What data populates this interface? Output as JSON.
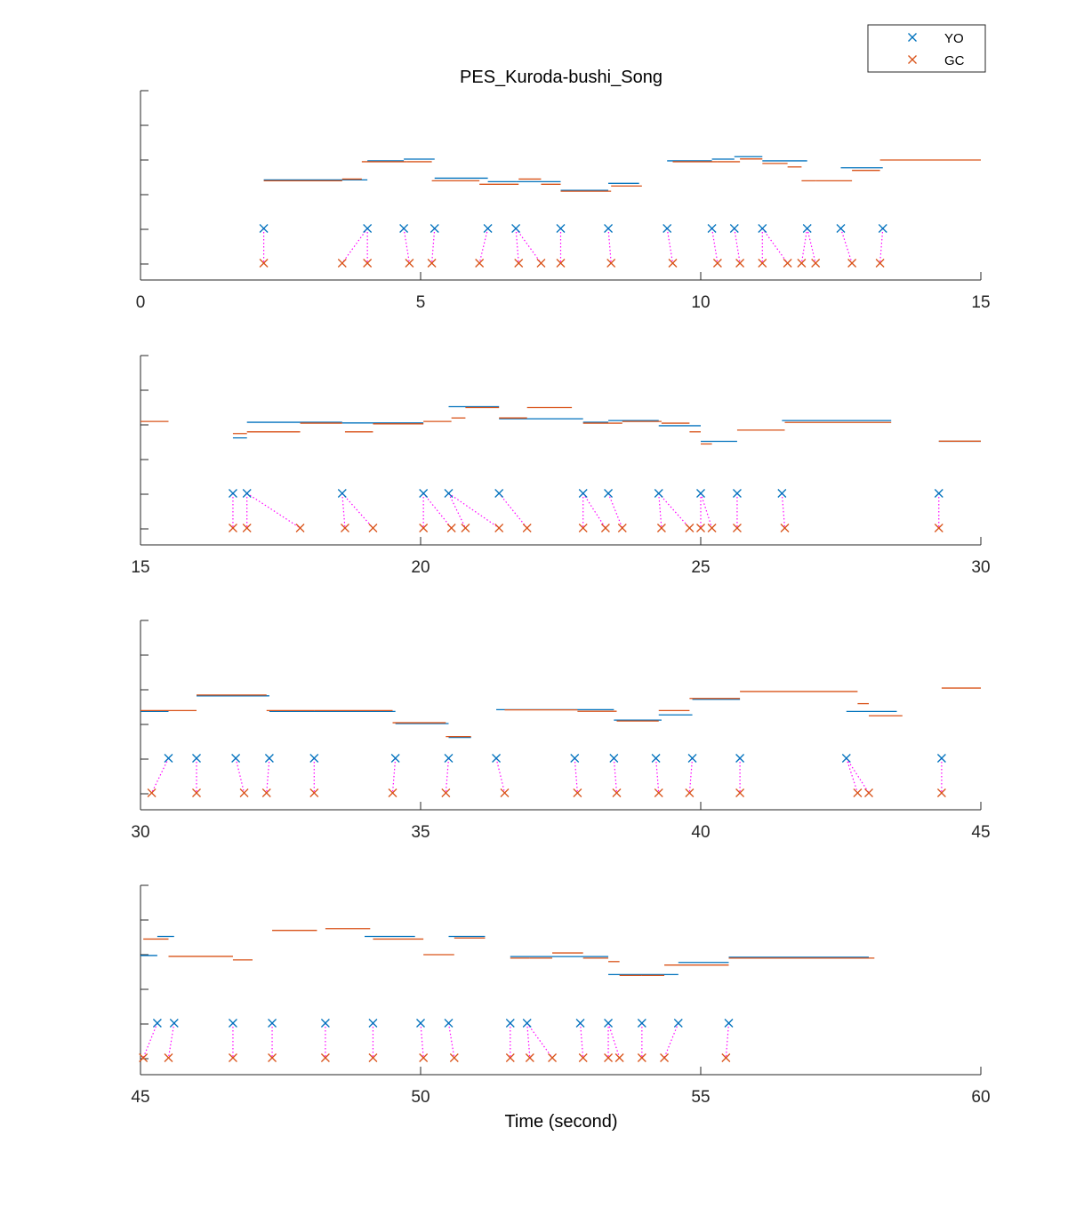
{
  "chart_data": {
    "type": "scatter",
    "title": "PES_Kuroda-bushi_Song",
    "xlabel": "Time (second)",
    "legend": {
      "placement": "top-right",
      "entries": [
        {
          "name": "YO",
          "color": "#0072BD",
          "marker": "x"
        },
        {
          "name": "GC",
          "color": "#D95319",
          "marker": "x"
        }
      ]
    },
    "link_color": "#FF00FF",
    "panels": [
      {
        "xlim": [
          0,
          15
        ],
        "xticks": [
          "0",
          "5",
          "10",
          "15"
        ],
        "yo_onsets": [
          2.2,
          4.05,
          4.7,
          5.25,
          6.2,
          6.7,
          7.5,
          8.35,
          9.4,
          10.2,
          10.6,
          11.1,
          11.9,
          12.5,
          13.25
        ],
        "gc_onsets": [
          2.2,
          3.6,
          4.05,
          4.8,
          5.2,
          6.05,
          6.75,
          7.15,
          7.5,
          8.4,
          9.5,
          10.3,
          10.7,
          11.1,
          11.55,
          11.8,
          12.05,
          12.7,
          13.2
        ],
        "links": [
          [
            2.2,
            2.2
          ],
          [
            4.05,
            4.05
          ],
          [
            4.05,
            3.6
          ],
          [
            4.7,
            4.8
          ],
          [
            5.25,
            5.2
          ],
          [
            6.2,
            6.05
          ],
          [
            6.7,
            6.75
          ],
          [
            6.7,
            7.15
          ],
          [
            7.5,
            7.5
          ],
          [
            8.35,
            8.4
          ],
          [
            9.4,
            9.5
          ],
          [
            10.2,
            10.3
          ],
          [
            10.6,
            10.7
          ],
          [
            11.1,
            11.1
          ],
          [
            11.1,
            11.55
          ],
          [
            11.9,
            11.8
          ],
          [
            11.9,
            12.05
          ],
          [
            12.5,
            12.7
          ],
          [
            13.25,
            13.2
          ]
        ],
        "yo_notes": [
          [
            2.2,
            4.05,
            2.4
          ],
          [
            4.05,
            4.7,
            2.95
          ],
          [
            4.7,
            5.25,
            3.0
          ],
          [
            5.25,
            6.2,
            2.45
          ],
          [
            6.2,
            6.7,
            2.35
          ],
          [
            6.7,
            7.5,
            2.35
          ],
          [
            7.5,
            8.35,
            2.1
          ],
          [
            8.35,
            8.9,
            2.3
          ],
          [
            9.4,
            10.2,
            2.95
          ],
          [
            10.2,
            10.6,
            3.0
          ],
          [
            10.6,
            11.1,
            3.07
          ],
          [
            11.1,
            11.9,
            2.95
          ],
          [
            12.5,
            13.25,
            2.75
          ]
        ],
        "gc_notes": [
          [
            2.2,
            3.6,
            2.4
          ],
          [
            3.6,
            3.95,
            2.45
          ],
          [
            3.95,
            4.75,
            2.95
          ],
          [
            4.75,
            5.2,
            2.95
          ],
          [
            5.2,
            6.05,
            2.4
          ],
          [
            6.05,
            6.75,
            2.3
          ],
          [
            6.75,
            7.15,
            2.45
          ],
          [
            7.15,
            7.5,
            2.3
          ],
          [
            7.5,
            8.4,
            2.1
          ],
          [
            8.4,
            8.95,
            2.25
          ],
          [
            9.5,
            10.3,
            2.95
          ],
          [
            10.3,
            10.7,
            2.95
          ],
          [
            10.7,
            11.1,
            3.03
          ],
          [
            11.1,
            11.55,
            2.9
          ],
          [
            11.55,
            11.8,
            2.8
          ],
          [
            11.8,
            12.05,
            2.4
          ],
          [
            12.05,
            12.7,
            2.4
          ],
          [
            12.7,
            13.2,
            2.7
          ],
          [
            13.2,
            15.0,
            3.0
          ]
        ]
      },
      {
        "xlim": [
          15,
          30
        ],
        "xticks": [
          "15",
          "20",
          "25",
          "30"
        ],
        "yo_onsets": [
          16.65,
          16.9,
          18.6,
          20.05,
          20.5,
          21.4,
          22.9,
          23.35,
          24.25,
          25.0,
          25.65,
          26.45,
          29.25
        ],
        "gc_onsets": [
          16.65,
          16.9,
          17.85,
          18.65,
          19.15,
          20.05,
          20.55,
          20.8,
          21.4,
          21.9,
          22.9,
          23.3,
          23.6,
          24.3,
          24.8,
          25.0,
          25.2,
          25.65,
          26.5,
          29.25
        ],
        "links": [
          [
            16.65,
            16.65
          ],
          [
            16.9,
            16.9
          ],
          [
            16.9,
            17.85
          ],
          [
            18.6,
            18.65
          ],
          [
            18.6,
            19.15
          ],
          [
            20.05,
            20.05
          ],
          [
            20.05,
            20.55
          ],
          [
            20.5,
            20.8
          ],
          [
            20.5,
            21.4
          ],
          [
            21.4,
            21.9
          ],
          [
            22.9,
            22.9
          ],
          [
            22.9,
            23.3
          ],
          [
            23.35,
            23.6
          ],
          [
            24.25,
            24.3
          ],
          [
            24.25,
            24.8
          ],
          [
            25.0,
            25.0
          ],
          [
            25.0,
            25.2
          ],
          [
            25.65,
            25.65
          ],
          [
            26.45,
            26.5
          ],
          [
            29.25,
            29.25
          ]
        ],
        "yo_notes": [
          [
            16.65,
            16.9,
            2.6
          ],
          [
            16.9,
            18.6,
            3.05
          ],
          [
            18.6,
            20.05,
            3.03
          ],
          [
            20.5,
            21.4,
            3.5
          ],
          [
            21.4,
            22.9,
            3.15
          ],
          [
            22.9,
            23.35,
            3.05
          ],
          [
            23.35,
            24.25,
            3.1
          ],
          [
            24.25,
            25.0,
            2.95
          ],
          [
            25.0,
            25.65,
            2.5
          ],
          [
            26.45,
            28.4,
            3.1
          ],
          [
            29.25,
            30.0,
            2.5
          ]
        ],
        "gc_notes": [
          [
            15.0,
            15.5,
            3.1
          ],
          [
            16.65,
            16.9,
            2.75
          ],
          [
            16.9,
            17.85,
            2.8
          ],
          [
            17.85,
            18.6,
            3.05
          ],
          [
            18.65,
            19.15,
            2.8
          ],
          [
            19.15,
            20.05,
            3.03
          ],
          [
            20.05,
            20.55,
            3.1
          ],
          [
            20.55,
            20.8,
            3.2
          ],
          [
            20.8,
            21.4,
            3.5
          ],
          [
            21.4,
            21.9,
            3.2
          ],
          [
            21.9,
            22.7,
            3.5
          ],
          [
            22.9,
            23.6,
            3.05
          ],
          [
            23.6,
            24.3,
            3.1
          ],
          [
            24.3,
            24.8,
            3.05
          ],
          [
            24.8,
            25.0,
            2.8
          ],
          [
            25.0,
            25.2,
            2.45
          ],
          [
            25.65,
            26.5,
            2.85
          ],
          [
            26.5,
            28.4,
            3.07
          ],
          [
            29.25,
            30.0,
            2.53
          ]
        ]
      },
      {
        "xlim": [
          30,
          45
        ],
        "xticks": [
          "30",
          "35",
          "40",
          "45"
        ],
        "yo_onsets": [
          30.5,
          31.0,
          31.7,
          32.3,
          33.1,
          34.55,
          35.5,
          36.35,
          37.75,
          38.45,
          39.2,
          39.85,
          40.7,
          42.6,
          44.3
        ],
        "gc_onsets": [
          30.2,
          31.0,
          31.85,
          32.25,
          33.1,
          34.5,
          35.45,
          36.5,
          37.8,
          38.5,
          39.25,
          39.8,
          40.7,
          42.8,
          43.0,
          44.3
        ],
        "links": [
          [
            30.5,
            30.2
          ],
          [
            31.0,
            31.0
          ],
          [
            31.7,
            31.85
          ],
          [
            32.3,
            32.25
          ],
          [
            33.1,
            33.1
          ],
          [
            34.55,
            34.5
          ],
          [
            35.5,
            35.45
          ],
          [
            36.35,
            36.5
          ],
          [
            37.75,
            37.8
          ],
          [
            38.45,
            38.5
          ],
          [
            39.2,
            39.25
          ],
          [
            39.85,
            39.8
          ],
          [
            40.7,
            40.7
          ],
          [
            42.6,
            42.8
          ],
          [
            42.6,
            43.0
          ],
          [
            44.3,
            44.3
          ]
        ],
        "yo_notes": [
          [
            30.0,
            30.5,
            2.35
          ],
          [
            31.0,
            32.3,
            2.8
          ],
          [
            32.3,
            34.55,
            2.35
          ],
          [
            34.55,
            35.5,
            2.0
          ],
          [
            35.5,
            35.9,
            1.6
          ],
          [
            36.35,
            37.75,
            2.4
          ],
          [
            37.75,
            38.45,
            2.4
          ],
          [
            38.45,
            39.3,
            2.1
          ],
          [
            39.25,
            39.85,
            2.25
          ],
          [
            39.85,
            40.7,
            2.7
          ],
          [
            42.6,
            43.5,
            2.35
          ]
        ],
        "gc_notes": [
          [
            30.0,
            30.5,
            2.4
          ],
          [
            30.5,
            31.0,
            2.4
          ],
          [
            31.0,
            32.25,
            2.85
          ],
          [
            32.25,
            33.1,
            2.4
          ],
          [
            33.1,
            34.5,
            2.4
          ],
          [
            34.5,
            35.45,
            2.05
          ],
          [
            35.45,
            35.9,
            1.65
          ],
          [
            36.5,
            37.8,
            2.42
          ],
          [
            37.8,
            38.5,
            2.38
          ],
          [
            38.5,
            39.25,
            2.1
          ],
          [
            39.25,
            39.8,
            2.4
          ],
          [
            39.8,
            40.7,
            2.75
          ],
          [
            40.7,
            42.8,
            2.95
          ],
          [
            42.8,
            43.0,
            2.6
          ],
          [
            43.0,
            43.6,
            2.25
          ],
          [
            44.3,
            45.0,
            3.05
          ]
        ]
      },
      {
        "xlim": [
          45,
          60
        ],
        "xticks": [
          "45",
          "50",
          "55",
          "60"
        ],
        "yo_onsets": [
          45.3,
          45.6,
          46.65,
          47.35,
          48.3,
          49.15,
          50.0,
          50.5,
          51.6,
          51.9,
          52.85,
          53.35,
          53.95,
          54.6,
          55.5
        ],
        "gc_onsets": [
          45.05,
          45.5,
          46.65,
          47.35,
          48.3,
          49.15,
          50.05,
          50.6,
          51.6,
          51.95,
          52.35,
          52.9,
          53.35,
          53.55,
          53.95,
          54.35,
          55.45
        ],
        "links": [
          [
            45.3,
            45.05
          ],
          [
            45.6,
            45.5
          ],
          [
            46.65,
            46.65
          ],
          [
            47.35,
            47.35
          ],
          [
            48.3,
            48.3
          ],
          [
            49.15,
            49.15
          ],
          [
            50.0,
            50.05
          ],
          [
            50.5,
            50.6
          ],
          [
            51.6,
            51.6
          ],
          [
            51.9,
            51.95
          ],
          [
            51.9,
            52.35
          ],
          [
            52.85,
            52.9
          ],
          [
            53.35,
            53.35
          ],
          [
            53.35,
            53.55
          ],
          [
            53.95,
            53.95
          ],
          [
            54.6,
            54.35
          ],
          [
            55.5,
            55.45
          ]
        ],
        "yo_notes": [
          [
            45.0,
            45.3,
            2.95
          ],
          [
            45.3,
            45.6,
            3.5
          ],
          [
            49.0,
            49.9,
            3.5
          ],
          [
            50.5,
            51.15,
            3.5
          ],
          [
            51.6,
            52.85,
            2.92
          ],
          [
            52.85,
            53.35,
            2.92
          ],
          [
            53.35,
            54.6,
            2.4
          ],
          [
            54.6,
            55.5,
            2.75
          ],
          [
            55.5,
            58.0,
            2.9
          ]
        ],
        "gc_notes": [
          [
            45.05,
            45.5,
            3.45
          ],
          [
            45.5,
            46.65,
            2.95
          ],
          [
            46.65,
            47.0,
            2.85
          ],
          [
            47.35,
            48.15,
            3.7
          ],
          [
            48.3,
            49.1,
            3.75
          ],
          [
            49.15,
            50.05,
            3.45
          ],
          [
            50.05,
            50.6,
            3.0
          ],
          [
            50.6,
            51.15,
            3.48
          ],
          [
            51.6,
            51.95,
            2.9
          ],
          [
            51.95,
            52.35,
            2.9
          ],
          [
            52.35,
            52.9,
            3.05
          ],
          [
            52.9,
            53.35,
            2.9
          ],
          [
            53.35,
            53.55,
            2.8
          ],
          [
            53.55,
            53.95,
            2.4
          ],
          [
            53.95,
            54.35,
            2.4
          ],
          [
            54.35,
            55.5,
            2.7
          ],
          [
            55.5,
            58.1,
            2.9
          ]
        ]
      }
    ]
  }
}
